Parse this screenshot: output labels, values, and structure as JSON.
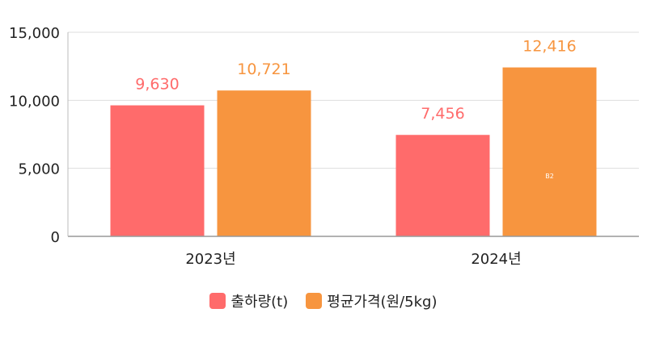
{
  "chart_data": {
    "type": "bar",
    "categories": [
      "2023년",
      "2024년"
    ],
    "series": [
      {
        "name": "출하량(t)",
        "values": [
          9630,
          7456
        ],
        "labels": [
          "9,630",
          "7,456"
        ],
        "color": "#ff6b6b"
      },
      {
        "name": "평균가격(원/5kg)",
        "values": [
          10721,
          12416
        ],
        "labels": [
          "10,721",
          "12,416"
        ],
        "color": "#f7953f"
      }
    ],
    "ylim": [
      0,
      15000
    ],
    "yticks": [
      0,
      5000,
      10000,
      15000
    ],
    "ytick_labels": [
      "0",
      "5,000",
      "10,000",
      "15,000"
    ],
    "grid": true,
    "legend_position": "bottom",
    "annotation": "B2"
  }
}
